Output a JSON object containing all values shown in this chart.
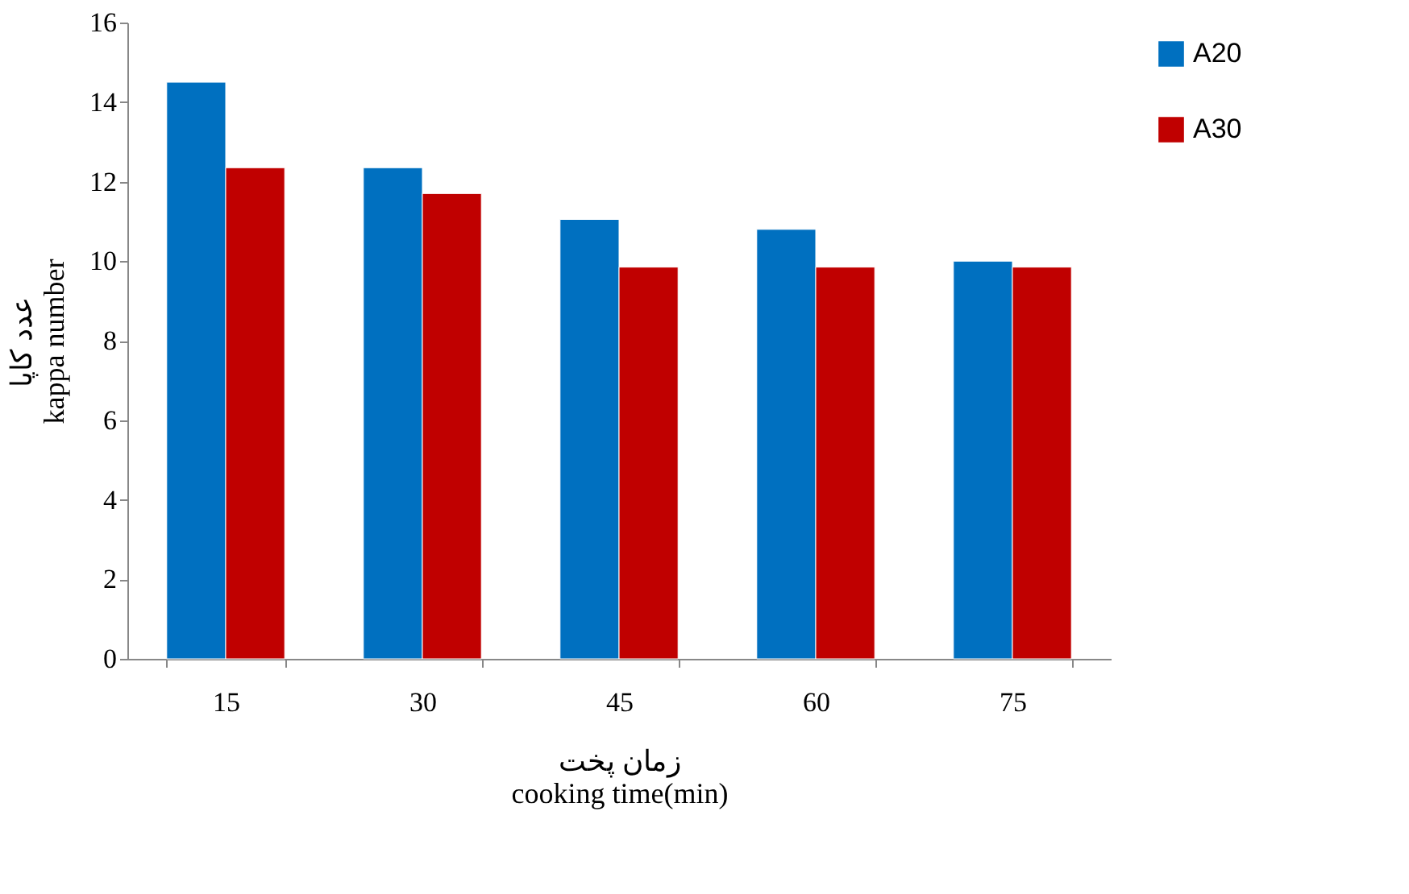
{
  "chart_data": {
    "type": "bar",
    "xlabel": "زمان پخت\ncooking  time(min)",
    "ylabel": "عدد کاپا\nkappa number",
    "categories": [
      "15",
      "30",
      "45",
      "60",
      "75"
    ],
    "series": [
      {
        "name": "A20",
        "color": "#0070c0",
        "values": [
          14.5,
          12.35,
          11.05,
          10.8,
          10.0
        ]
      },
      {
        "name": "A30",
        "color": "#c00000",
        "values": [
          12.35,
          11.7,
          9.85,
          9.85,
          9.85
        ]
      }
    ],
    "ylim": [
      0,
      16
    ],
    "yticks": [
      0,
      2,
      4,
      6,
      8,
      10,
      12,
      14,
      16
    ],
    "grid": false,
    "legend": "right"
  }
}
